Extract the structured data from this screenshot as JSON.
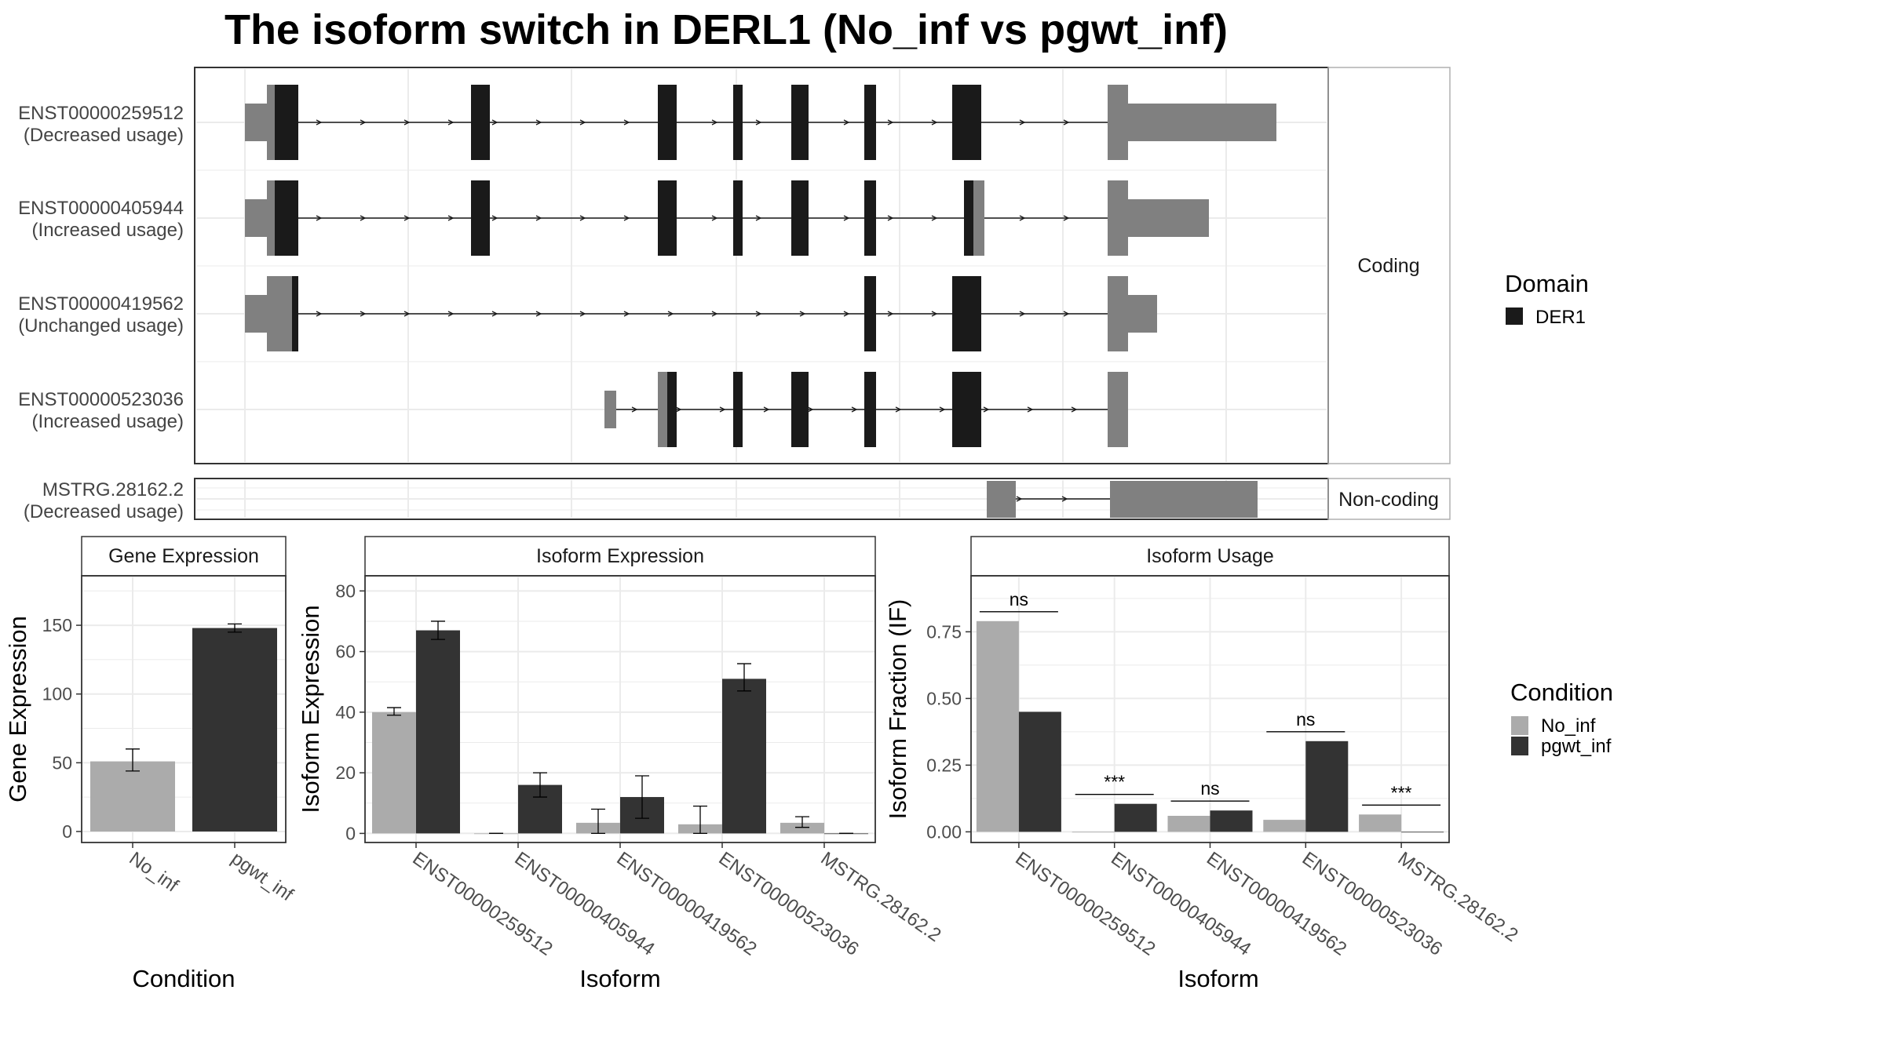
{
  "title": "The isoform switch in DERL1 (No_inf vs pgwt_inf)",
  "colors": {
    "no_inf": "#ababab",
    "pgwt_inf": "#333333",
    "utr": "#808080",
    "cds": "#1a1a1a",
    "grid": "#ebebeb",
    "frame": "#333333"
  },
  "structure": {
    "coding_label": "Coding",
    "noncoding_label": "Non-coding",
    "transcripts": [
      {
        "id": "ENST00000259512",
        "status": "(Decreased usage)"
      },
      {
        "id": "ENST00000405944",
        "status": "(Increased usage)"
      },
      {
        "id": "ENST00000419562",
        "status": "(Unchanged usage)"
      },
      {
        "id": "ENST00000523036",
        "status": "(Increased usage)"
      }
    ],
    "noncoding": {
      "id": "MSTRG.28162.2",
      "status": "(Decreased usage)"
    }
  },
  "legend": {
    "domain_title": "Domain",
    "domain_items": [
      {
        "label": "DER1",
        "color": "#1a1a1a"
      }
    ],
    "condition_title": "Condition",
    "condition_items": [
      {
        "label": "No_inf",
        "color": "#ababab"
      },
      {
        "label": "pgwt_inf",
        "color": "#333333"
      }
    ]
  },
  "chart_data": [
    {
      "type": "bar",
      "title": "Gene Expression",
      "xlabel": "Condition",
      "ylabel": "Gene Expression",
      "categories": [
        "No_inf",
        "pgwt_inf"
      ],
      "values": [
        51,
        148
      ],
      "errors": [
        [
          44,
          60
        ],
        [
          145,
          151
        ]
      ],
      "ylim": [
        -8,
        186
      ],
      "yticks": [
        0,
        50,
        100,
        150
      ]
    },
    {
      "type": "bar",
      "title": "Isoform Expression",
      "xlabel": "Isoform",
      "ylabel": "Isoform Expression",
      "categories": [
        "ENST00000259512",
        "ENST00000405944",
        "ENST00000419562",
        "ENST00000523036",
        "MSTRG.28162.2"
      ],
      "series": [
        {
          "name": "No_inf",
          "values": [
            40,
            0,
            3.5,
            3,
            3.5
          ],
          "errors": [
            [
              39,
              41.5
            ],
            [
              0,
              0
            ],
            [
              0,
              8
            ],
            [
              0,
              9
            ],
            [
              2,
              5.5
            ]
          ]
        },
        {
          "name": "pgwt_inf",
          "values": [
            67,
            16,
            12,
            51,
            0
          ],
          "errors": [
            [
              64,
              70
            ],
            [
              12,
              20
            ],
            [
              5,
              19
            ],
            [
              47,
              56
            ],
            [
              0,
              0
            ]
          ]
        }
      ],
      "ylim": [
        -3,
        85
      ],
      "yticks": [
        0,
        20,
        40,
        60,
        80
      ]
    },
    {
      "type": "bar",
      "title": "Isoform Usage",
      "xlabel": "Isoform",
      "ylabel": "Isoform Fraction (IF)",
      "categories": [
        "ENST00000259512",
        "ENST00000405944",
        "ENST00000419562",
        "ENST00000523036",
        "MSTRG.28162.2"
      ],
      "series": [
        {
          "name": "No_inf",
          "values": [
            0.79,
            0.0,
            0.06,
            0.045,
            0.065
          ]
        },
        {
          "name": "pgwt_inf",
          "values": [
            0.45,
            0.105,
            0.08,
            0.34,
            0.0
          ]
        }
      ],
      "significance": [
        "ns",
        "***",
        "ns",
        "ns",
        "***"
      ],
      "ylim": [
        -0.04,
        0.96
      ],
      "yticks": [
        "0.00",
        "0.25",
        "0.50",
        "0.75"
      ]
    }
  ]
}
